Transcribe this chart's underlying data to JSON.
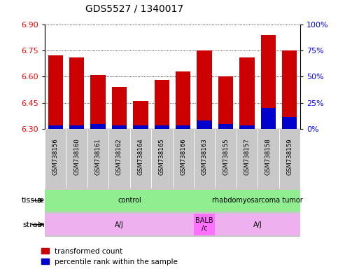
{
  "title": "GDS5527 / 1340017",
  "samples": [
    "GSM738156",
    "GSM738160",
    "GSM738161",
    "GSM738162",
    "GSM738164",
    "GSM738165",
    "GSM738166",
    "GSM738163",
    "GSM738155",
    "GSM738157",
    "GSM738158",
    "GSM738159"
  ],
  "red_values": [
    6.72,
    6.71,
    6.61,
    6.54,
    6.46,
    6.58,
    6.63,
    6.75,
    6.6,
    6.71,
    6.84,
    6.75
  ],
  "blue_values": [
    0.02,
    0.02,
    0.03,
    0.02,
    0.02,
    0.02,
    0.02,
    0.05,
    0.03,
    0.02,
    0.12,
    0.07
  ],
  "y_min": 6.3,
  "y_max": 6.9,
  "y_ticks": [
    6.3,
    6.45,
    6.6,
    6.75,
    6.9
  ],
  "right_y_ticks": [
    0,
    25,
    50,
    75,
    100
  ],
  "legend_red": "transformed count",
  "legend_blue": "percentile rank within the sample",
  "bar_color_red": "#CC0000",
  "bar_color_blue": "#0000CC",
  "tissue_segs": [
    {
      "text": "control",
      "start": 0,
      "end": 7,
      "color": "#90EE90"
    },
    {
      "text": "rhabdomyosarcoma tumor",
      "start": 8,
      "end": 11,
      "color": "#90EE90"
    }
  ],
  "strain_segs": [
    {
      "text": "A/J",
      "start": 0,
      "end": 6,
      "color": "#EEB0EE"
    },
    {
      "text": "BALB\n/c",
      "start": 7,
      "end": 7,
      "color": "#FF70FF"
    },
    {
      "text": "A/J",
      "start": 8,
      "end": 11,
      "color": "#EEB0EE"
    }
  ],
  "sample_box_color": "#C8C8C8",
  "tissue_label": "tissue",
  "strain_label": "strain",
  "figw": 4.93,
  "figh": 3.84
}
